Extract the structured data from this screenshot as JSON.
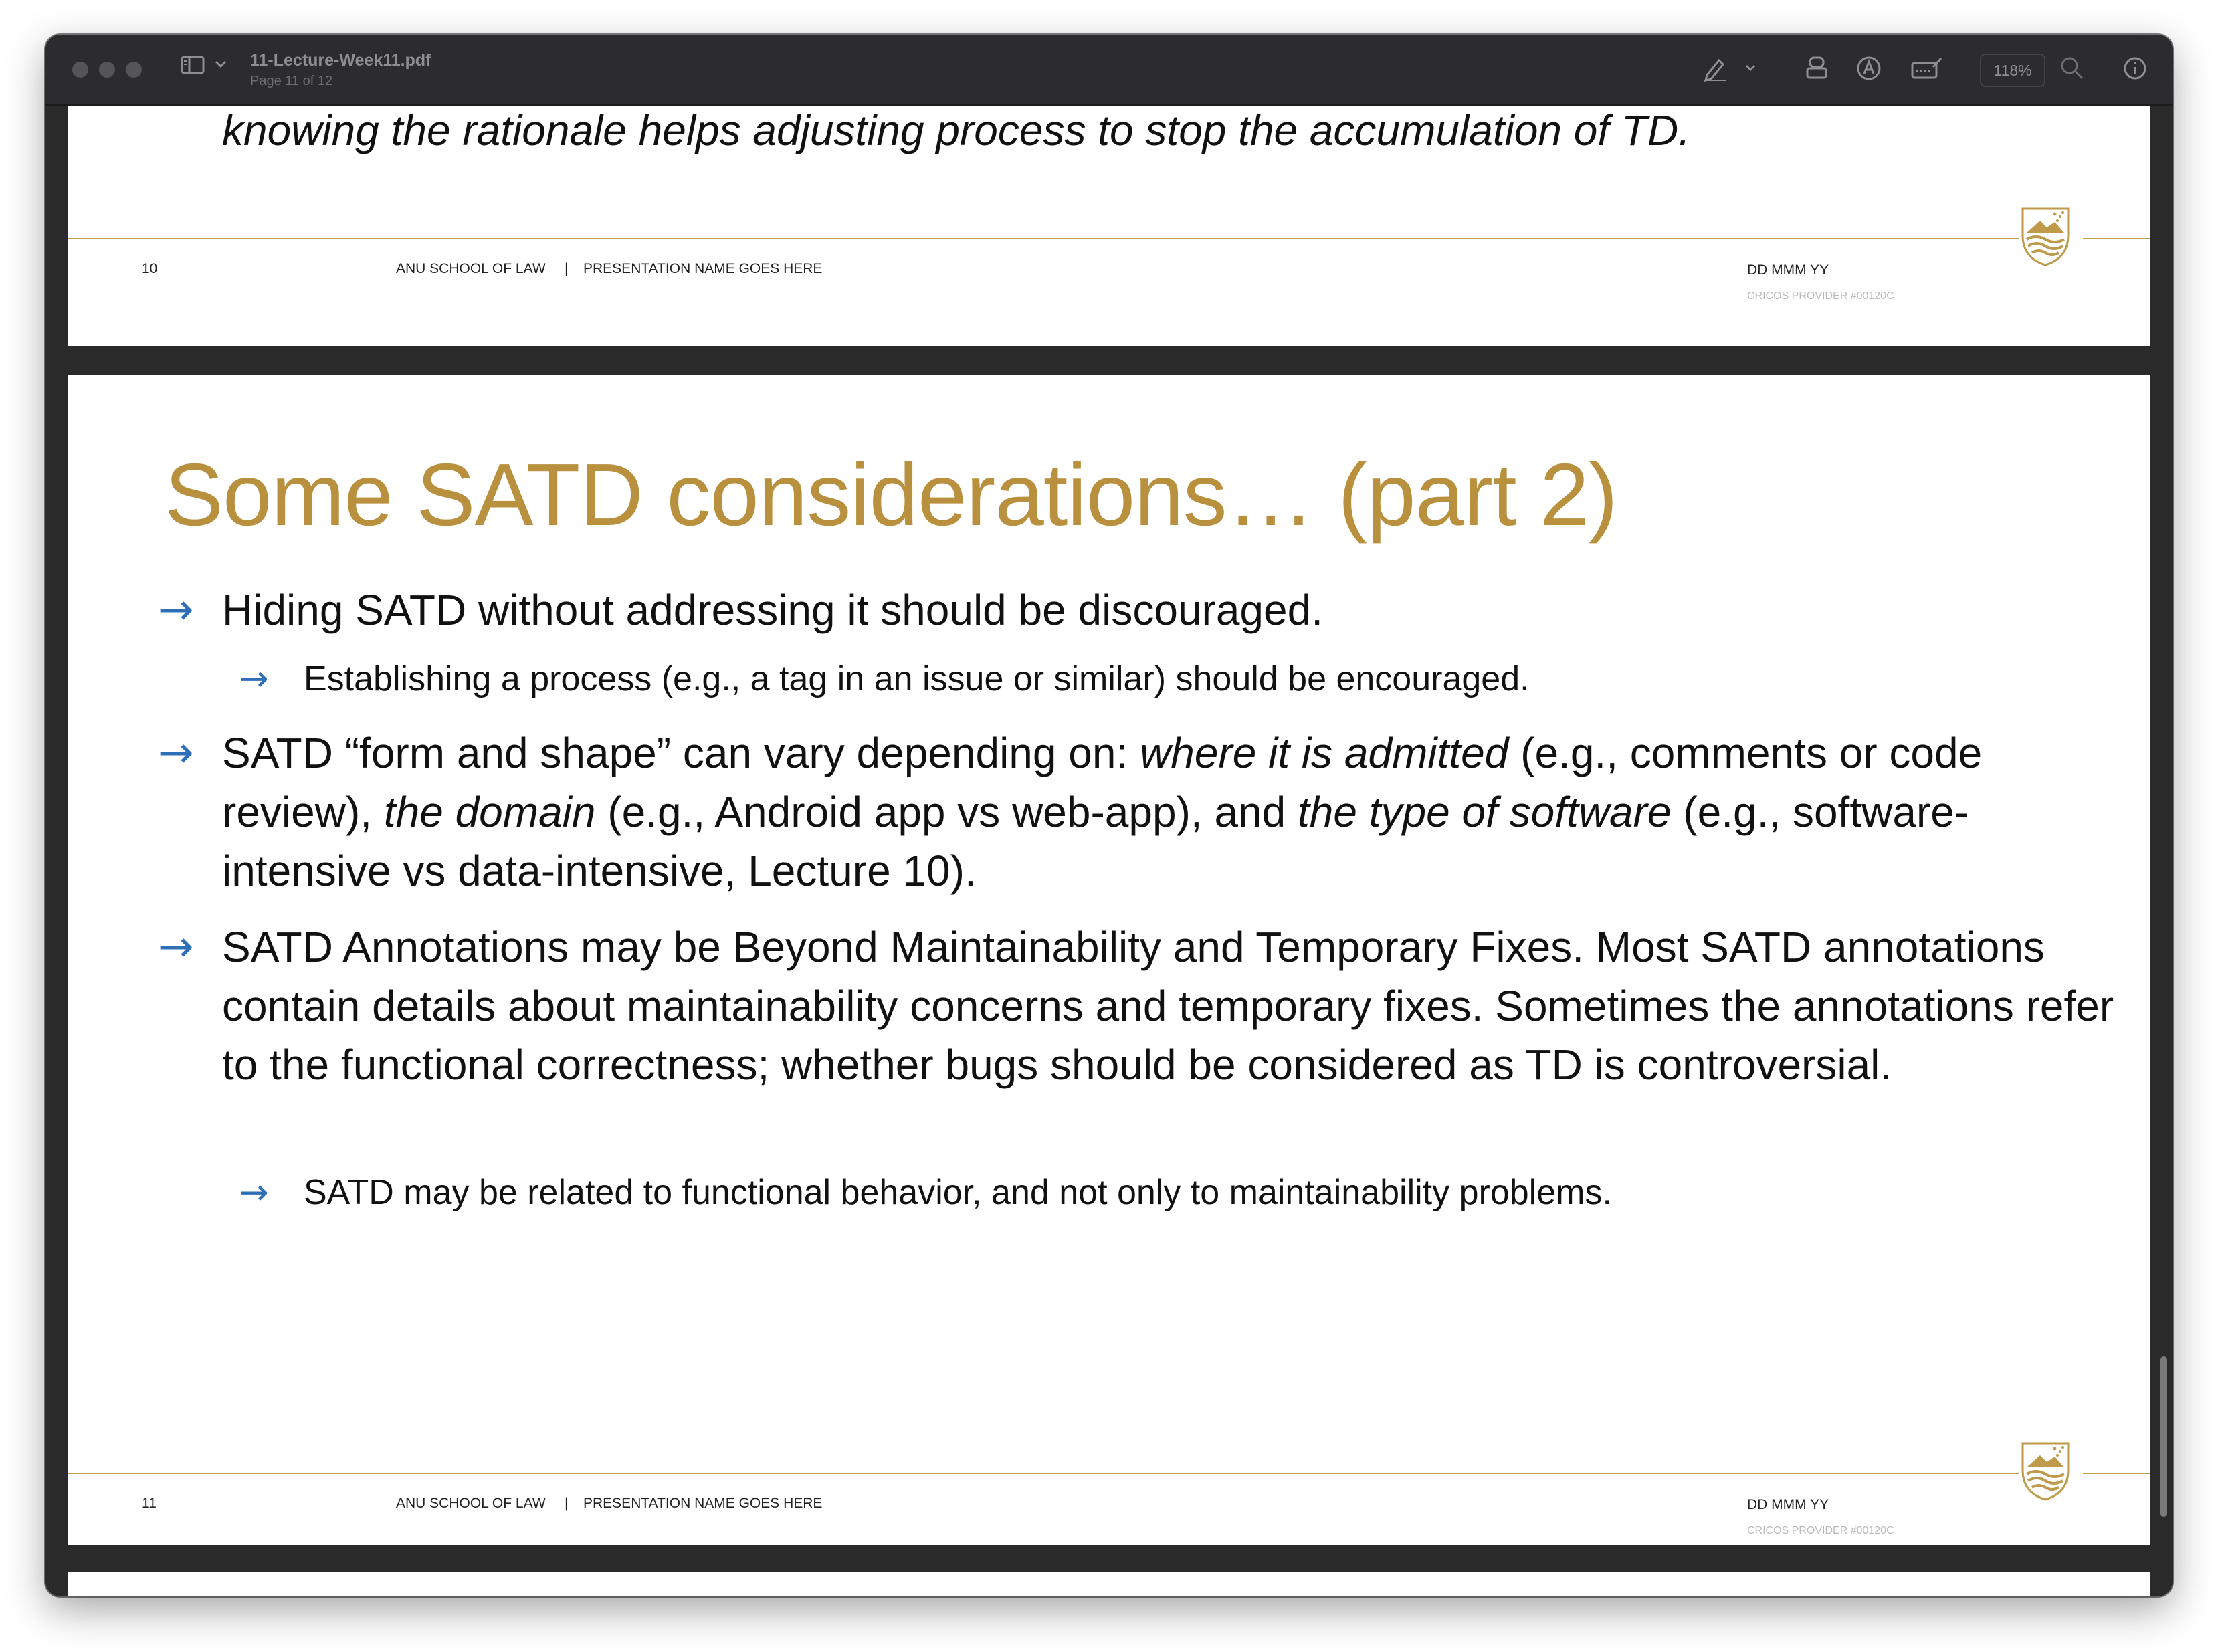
{
  "window": {
    "doc_title": "11-Lecture-Week11.pdf",
    "doc_subtitle": "Page 11 of 12",
    "zoom": "118%",
    "icons": [
      "sidebar-icon",
      "chevron-down-icon",
      "markup-pen-icon",
      "chevron-down-icon",
      "stamp-icon",
      "signature-icon",
      "form-icon",
      "search-icon",
      "info-icon"
    ]
  },
  "prev_page": {
    "trailing_text": "knowing the rationale helps adjusting process to stop the accumulation of TD.",
    "footer": {
      "page_number": "10",
      "school": "ANU SCHOOL OF LAW",
      "separator": "|",
      "presentation": "PRESENTATION NAME GOES HERE",
      "date": "DD MMM YY",
      "cricos": "CRICOS PROVIDER #00120C"
    }
  },
  "slide": {
    "title": "Some SATD considerations… (part 2)",
    "bullet1": "Hiding SATD without addressing it should be discouraged.",
    "bullet1_sub": "Establishing a process (e.g., a tag in an issue or similar) should be encouraged.",
    "bullet2": {
      "p1": "SATD “form and shape” can vary depending on: ",
      "i1": "where it is admitted",
      "p2": " (e.g., comments or code review), ",
      "i2": "the domain",
      "p3": " (e.g., Android app vs web-app), and ",
      "i3": "the type of software",
      "p4": " (e.g., software-intensive vs data-intensive, Lecture 10)."
    },
    "bullet3": "SATD Annotations may be Beyond Maintainability and Temporary Fixes.  Most SATD annotations contain details about maintainability concerns and temporary fixes. Sometimes the annotations refer to the functional correctness; whether bugs should be considered as TD is controversial.",
    "bullet3_sub": "SATD may be related to functional behavior, and not only to maintainability problems.",
    "footer": {
      "page_number": "11",
      "school": "ANU SCHOOL OF LAW",
      "separator": "|",
      "presentation": "PRESENTATION NAME GOES HERE",
      "date": "DD MMM YY",
      "cricos": "CRICOS PROVIDER #00120C"
    }
  },
  "colors": {
    "title_gold": "#b8903e",
    "rule_gold": "#be9a4a",
    "arrow_blue": "#2f6fb8",
    "toolbar_bg": "#2c2c2e"
  }
}
